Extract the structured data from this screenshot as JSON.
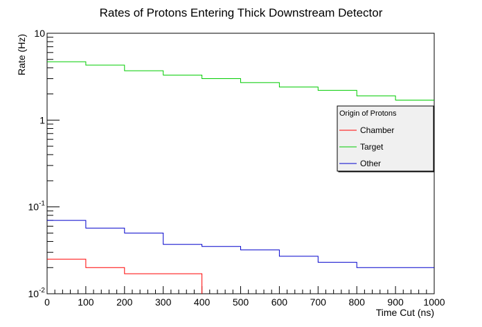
{
  "chart_data": {
    "type": "line",
    "title": "Rates of Protons Entering Thick Downstream Detector",
    "xlabel": "Time Cut (ns)",
    "ylabel": "Rate (Hz)",
    "xlim": [
      0,
      1000
    ],
    "ylim": [
      0.01,
      10
    ],
    "yscale": "log",
    "x_ticks": [
      "0",
      "100",
      "200",
      "300",
      "400",
      "500",
      "600",
      "700",
      "800",
      "900",
      "1000"
    ],
    "y_ticks": [
      {
        "value": 10,
        "base": "10",
        "exp": ""
      },
      {
        "value": 1,
        "base": "1",
        "exp": ""
      },
      {
        "value": 0.1,
        "base": "10",
        "exp": "-1"
      },
      {
        "value": 0.01,
        "base": "10",
        "exp": "-2"
      }
    ],
    "grid": false,
    "legend": {
      "title": "Origin of Protons",
      "placement": "right",
      "entries": [
        "Chamber",
        "Target",
        "Other"
      ]
    },
    "bin_edges": [
      0,
      100,
      200,
      300,
      400,
      500,
      600,
      700,
      800,
      900,
      1000
    ],
    "series": [
      {
        "name": "Chamber",
        "color": "#ff0000",
        "values": [
          0.025,
          0.02,
          0.017,
          0.017,
          0.0095,
          0.0095,
          0.0095,
          0.0095,
          0.0095,
          0.0095
        ]
      },
      {
        "name": "Target",
        "color": "#00cc00",
        "values": [
          4.7,
          4.3,
          3.7,
          3.3,
          3.0,
          2.7,
          2.4,
          2.2,
          1.9,
          1.7
        ]
      },
      {
        "name": "Other",
        "color": "#0000cc",
        "values": [
          0.07,
          0.057,
          0.05,
          0.037,
          0.035,
          0.032,
          0.027,
          0.023,
          0.02,
          0.02
        ]
      }
    ]
  }
}
